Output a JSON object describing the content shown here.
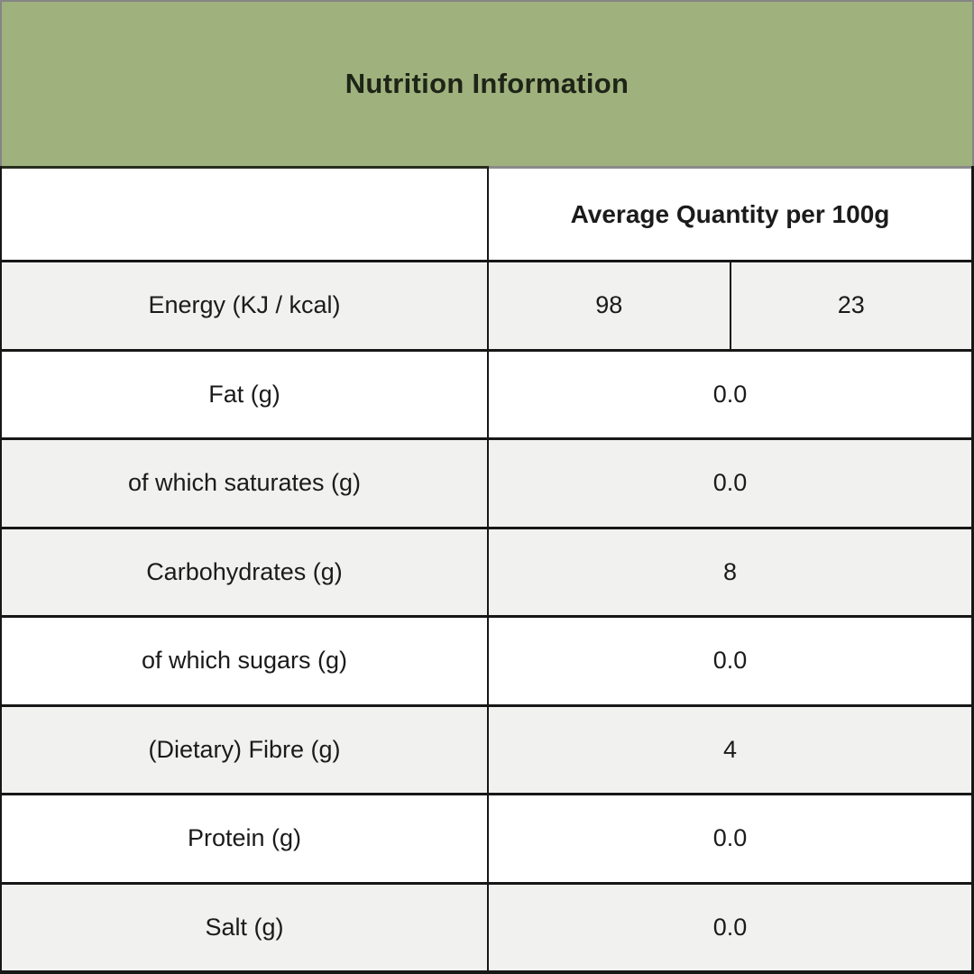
{
  "banner": {
    "title": "Nutrition Information"
  },
  "table": {
    "value_header": "Average Quantity per 100g",
    "rows": [
      {
        "label": "Energy (KJ / kcal)",
        "values": [
          "98",
          "23"
        ],
        "shaded": true
      },
      {
        "label": "Fat (g)",
        "values": [
          "0.0"
        ],
        "shaded": false
      },
      {
        "label": "of which saturates (g)",
        "values": [
          "0.0"
        ],
        "shaded": true
      },
      {
        "label": "Carbohydrates (g)",
        "values": [
          "8"
        ],
        "shaded": true
      },
      {
        "label": "of which sugars (g)",
        "values": [
          "0.0"
        ],
        "shaded": false
      },
      {
        "label": "(Dietary) Fibre (g)",
        "values": [
          "4"
        ],
        "shaded": true
      },
      {
        "label": "Protein (g)",
        "values": [
          "0.0"
        ],
        "shaded": false
      },
      {
        "label": "Salt (g)",
        "values": [
          "0.0"
        ],
        "shaded": true
      }
    ]
  },
  "colors": {
    "banner_green": "#9FB17D",
    "shaded_row": "#F1F1F0",
    "border_dark": "#171717",
    "text_dark": "#1B1B1B"
  }
}
